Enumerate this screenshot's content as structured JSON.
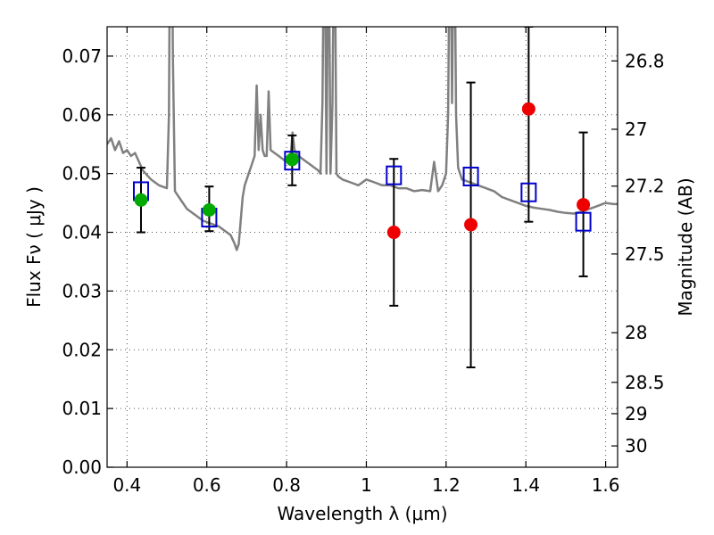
{
  "chart_data": {
    "type": "scatter",
    "xlabel": "Wavelength  λ (μm)",
    "ylabel": "Flux  Fν  ( μJy )",
    "y2label": "Magnitude (AB)",
    "xlim": [
      0.35,
      1.63
    ],
    "ylim": [
      0.0,
      0.075
    ],
    "grid": true,
    "x_ticks": [
      {
        "value": 0.4,
        "label": "0.4"
      },
      {
        "value": 0.6,
        "label": "0.6"
      },
      {
        "value": 0.8,
        "label": "0.8"
      },
      {
        "value": 1.0,
        "label": "1"
      },
      {
        "value": 1.2,
        "label": "1.2"
      },
      {
        "value": 1.4,
        "label": "1.4"
      },
      {
        "value": 1.6,
        "label": "1.6"
      }
    ],
    "y_ticks": [
      {
        "value": 0.0,
        "label": "0.00"
      },
      {
        "value": 0.01,
        "label": "0.01"
      },
      {
        "value": 0.02,
        "label": "0.02"
      },
      {
        "value": 0.03,
        "label": "0.03"
      },
      {
        "value": 0.04,
        "label": "0.04"
      },
      {
        "value": 0.05,
        "label": "0.05"
      },
      {
        "value": 0.06,
        "label": "0.06"
      },
      {
        "value": 0.07,
        "label": "0.07"
      }
    ],
    "y2_ticks": [
      {
        "value": 26.8,
        "label": "26.8"
      },
      {
        "value": 27.0,
        "label": "27"
      },
      {
        "value": 27.2,
        "label": "27.2"
      },
      {
        "value": 27.5,
        "label": "27.5"
      },
      {
        "value": 28.0,
        "label": "28"
      },
      {
        "value": 28.5,
        "label": "28.5"
      },
      {
        "value": 29.0,
        "label": "29"
      },
      {
        "value": 30.0,
        "label": "30"
      }
    ],
    "colors": {
      "model": "#808080",
      "model_photometry": "#0000cc",
      "optical_detection": "#00aa00",
      "nir_measurement": "#ee0000",
      "error_bar": "#000000"
    },
    "series": [
      {
        "type": "line",
        "color": "#808080",
        "x": [
          0.35,
          0.36,
          0.37,
          0.38,
          0.39,
          0.4,
          0.41,
          0.42,
          0.44,
          0.46,
          0.48,
          0.5,
          0.505,
          0.51,
          0.515,
          0.52,
          0.525,
          0.53,
          0.55,
          0.57,
          0.59,
          0.61,
          0.63,
          0.65,
          0.66,
          0.67,
          0.675,
          0.68,
          0.685,
          0.69,
          0.695,
          0.7,
          0.705,
          0.71,
          0.715,
          0.72,
          0.725,
          0.73,
          0.735,
          0.74,
          0.745,
          0.75,
          0.755,
          0.76,
          0.77,
          0.78,
          0.79,
          0.8,
          0.81,
          0.815,
          0.82,
          0.83,
          0.84,
          0.85,
          0.86,
          0.87,
          0.88,
          0.885,
          0.89,
          0.895,
          0.9,
          0.905,
          0.91,
          0.915,
          0.92,
          0.925,
          0.93,
          0.94,
          0.96,
          0.98,
          1.0,
          1.02,
          1.04,
          1.06,
          1.08,
          1.1,
          1.12,
          1.14,
          1.16,
          1.17,
          1.18,
          1.19,
          1.2,
          1.205,
          1.21,
          1.215,
          1.22,
          1.225,
          1.23,
          1.235,
          1.24,
          1.26,
          1.28,
          1.3,
          1.32,
          1.34,
          1.36,
          1.38,
          1.4,
          1.42,
          1.44,
          1.46,
          1.48,
          1.5,
          1.52,
          1.54,
          1.56,
          1.58,
          1.6,
          1.62,
          1.63
        ],
        "y": [
          0.055,
          0.056,
          0.054,
          0.0555,
          0.0535,
          0.054,
          0.053,
          0.0535,
          0.0505,
          0.049,
          0.048,
          0.0475,
          0.06,
          0.12,
          0.07,
          0.047,
          0.0465,
          0.046,
          0.044,
          0.043,
          0.042,
          0.0415,
          0.041,
          0.04,
          0.0395,
          0.038,
          0.037,
          0.038,
          0.042,
          0.046,
          0.048,
          0.049,
          0.05,
          0.051,
          0.052,
          0.053,
          0.065,
          0.054,
          0.06,
          0.054,
          0.053,
          0.053,
          0.064,
          0.054,
          0.0535,
          0.053,
          0.0525,
          0.052,
          0.053,
          0.057,
          0.054,
          0.053,
          0.0525,
          0.052,
          0.0515,
          0.051,
          0.0505,
          0.05,
          0.062,
          0.1,
          0.05,
          0.1,
          0.05,
          0.062,
          0.1,
          0.05,
          0.0495,
          0.049,
          0.0485,
          0.048,
          0.049,
          0.0485,
          0.048,
          0.048,
          0.0475,
          0.0475,
          0.047,
          0.0472,
          0.047,
          0.052,
          0.047,
          0.048,
          0.05,
          0.06,
          0.1,
          0.062,
          0.1,
          0.06,
          0.051,
          0.05,
          0.049,
          0.0485,
          0.048,
          0.0475,
          0.047,
          0.046,
          0.0455,
          0.045,
          0.0445,
          0.0442,
          0.044,
          0.0438,
          0.0435,
          0.0433,
          0.0432,
          0.0435,
          0.044,
          0.0445,
          0.045,
          0.0448,
          0.0448
        ]
      },
      {
        "type": "scatter",
        "marker": "square-open",
        "color": "#0000cc",
        "x": [
          0.435,
          0.606,
          0.814,
          1.069,
          1.262,
          1.407,
          1.544
        ],
        "y": [
          0.047,
          0.0425,
          0.0522,
          0.0497,
          0.0495,
          0.0468,
          0.0418
        ]
      },
      {
        "type": "scatter",
        "marker": "circle",
        "color": "#00aa00",
        "x": [
          0.435,
          0.606,
          0.814
        ],
        "y": [
          0.0455,
          0.0438,
          0.0524
        ],
        "yerr_low": [
          0.04,
          0.0402,
          0.048
        ],
        "yerr_high": [
          0.051,
          0.0478,
          0.0565
        ]
      },
      {
        "type": "scatter",
        "marker": "circle",
        "color": "#ee0000",
        "x": [
          1.069,
          1.262,
          1.407,
          1.544
        ],
        "y": [
          0.04,
          0.0413,
          0.061,
          0.0447
        ],
        "yerr_low": [
          0.0275,
          0.017,
          0.0418,
          0.0325
        ],
        "yerr_high": [
          0.0525,
          0.0655,
          0.075,
          0.057
        ]
      }
    ]
  }
}
